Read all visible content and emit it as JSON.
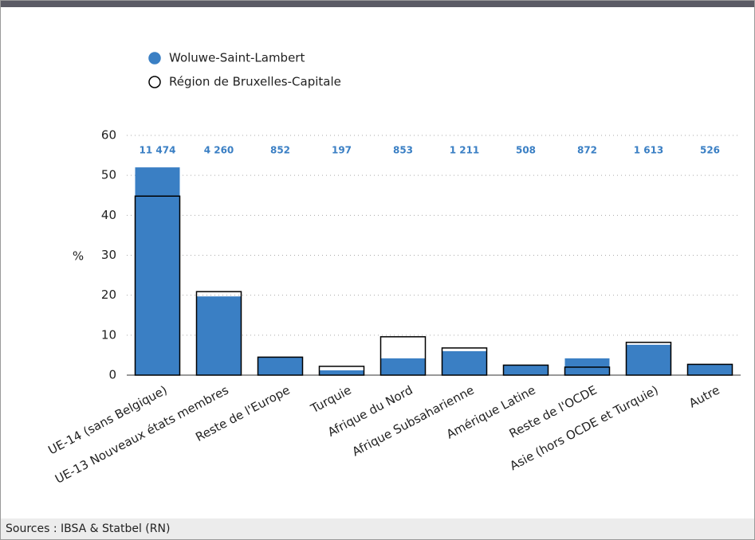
{
  "chart_data": {
    "type": "bar",
    "y_label": "%",
    "categories": [
      "UE-14 (sans Belgique)",
      "UE-13 Nouveaux états membres",
      "Reste de l'Europe",
      "Turquie",
      "Afrique du Nord",
      "Afrique Subsaharienne",
      "Amérique Latine",
      "Reste de l'OCDE",
      "Asie (hors OCDE et Turquie)",
      "Autre"
    ],
    "series": [
      {
        "name": "Woluwe-Saint-Lambert",
        "color": "#3a7fc4",
        "style": "filled",
        "values": [
          52.0,
          19.7,
          4.6,
          1.2,
          4.2,
          6.0,
          2.6,
          4.2,
          7.6,
          2.8
        ]
      },
      {
        "name": "Région de Bruxelles-Capitale",
        "color": "#000000",
        "style": "outline",
        "values": [
          44.8,
          20.9,
          4.5,
          2.2,
          9.6,
          6.8,
          2.5,
          2.0,
          8.2,
          2.7
        ]
      }
    ],
    "counts": [
      {
        "value": 11474,
        "label": "11 474"
      },
      {
        "value": 4260,
        "label": "4 260"
      },
      852,
      197,
      853,
      {
        "value": 1211,
        "label": "1 211"
      },
      508,
      872,
      {
        "value": 1613,
        "label": "1 613"
      },
      526
    ],
    "ylim": [
      0,
      60
    ],
    "yticks": [
      0,
      10,
      20,
      30,
      40,
      50,
      60
    ],
    "grid": true
  },
  "source": "Sources : IBSA & Statbel (RN)"
}
